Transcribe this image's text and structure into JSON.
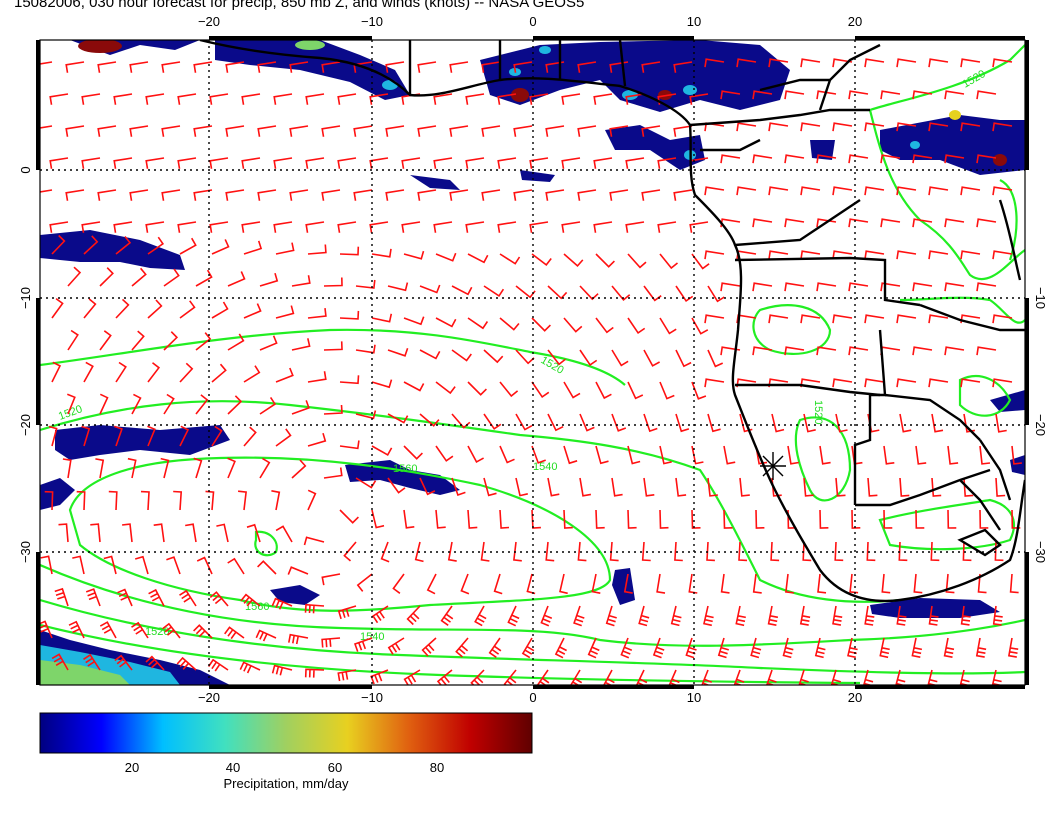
{
  "title": "15082006, 030 hour forecast for precip, 850 mb Z, and winds (knots) -- NASA GEOS5",
  "map": {
    "lon_ticks_top": [
      "−20",
      "−10",
      "0",
      "10",
      "20"
    ],
    "lon_ticks_bottom": [
      "−20",
      "−10",
      "0",
      "10",
      "20"
    ],
    "lat_ticks_left": [
      "0",
      "−10",
      "−20",
      "−30"
    ],
    "lat_ticks_right": [
      "−10",
      "−20",
      "−30"
    ],
    "contour_labels": [
      "1520",
      "1520",
      "1520",
      "1540",
      "1560",
      "1560",
      "1520",
      "1540",
      "1520"
    ],
    "colors": {
      "contour": "#22ee22",
      "wind_barbs": "#ff1111",
      "coastline": "#000000",
      "grid": "#000000"
    },
    "precip_colors": [
      "#0a0a8a",
      "#1a3fd0",
      "#1fb6e0",
      "#7ed56a",
      "#e6d21f",
      "#e06414",
      "#8a0a0a"
    ]
  },
  "colorbar": {
    "ticks": [
      "20",
      "40",
      "60",
      "80"
    ],
    "label": "Precipitation, mm/day",
    "gradient": [
      "#000080",
      "#0000ff",
      "#00bfff",
      "#40e0c0",
      "#a0d060",
      "#e8d020",
      "#e06010",
      "#c00000",
      "#600000"
    ]
  }
}
